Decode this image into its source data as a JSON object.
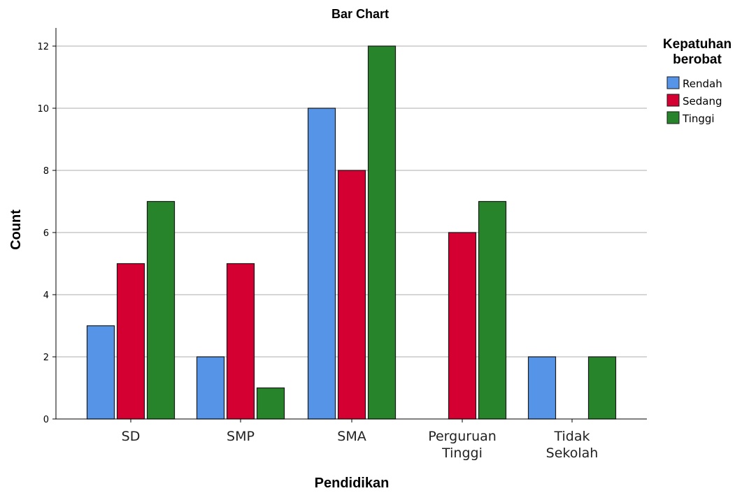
{
  "chart_data": {
    "type": "bar",
    "title": "Bar Chart",
    "xlabel": "Pendidikan",
    "ylabel": "Count",
    "categories": [
      [
        "SD"
      ],
      [
        "SMP"
      ],
      [
        "SMA"
      ],
      [
        "Perguruan",
        "Tinggi"
      ],
      [
        "Tidak",
        "Sekolah"
      ]
    ],
    "series": [
      {
        "name": "Rendah",
        "color": "#5694e8",
        "values": [
          3,
          2,
          10,
          0,
          2
        ]
      },
      {
        "name": "Sedang",
        "color": "#d40032",
        "values": [
          5,
          5,
          8,
          6,
          0
        ]
      },
      {
        "name": "Tinggi",
        "color": "#27842a",
        "values": [
          7,
          1,
          12,
          7,
          2
        ]
      }
    ],
    "ylim": [
      0,
      12.6
    ],
    "yticks": [
      "0",
      "2",
      "4",
      "6",
      "8",
      "10",
      "12"
    ],
    "grid": true,
    "legend": {
      "title": [
        "Kepatuhan",
        "berobat"
      ],
      "placement": "right"
    }
  }
}
